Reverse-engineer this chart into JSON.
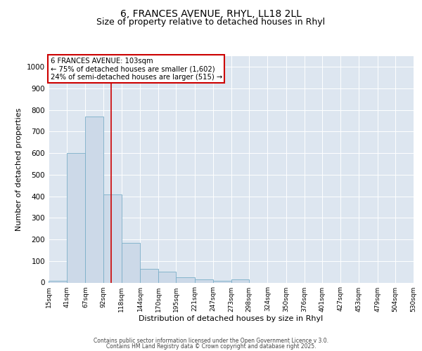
{
  "title1": "6, FRANCES AVENUE, RHYL, LL18 2LL",
  "title2": "Size of property relative to detached houses in Rhyl",
  "xlabel": "Distribution of detached houses by size in Rhyl",
  "ylabel": "Number of detached properties",
  "bar_color": "#ccd9e8",
  "bar_edge_color": "#7aaec8",
  "background_color": "#dde6f0",
  "ylim": [
    0,
    1050
  ],
  "yticks": [
    0,
    100,
    200,
    300,
    400,
    500,
    600,
    700,
    800,
    900,
    1000
  ],
  "bin_edges": [
    15,
    41,
    67,
    92,
    118,
    144,
    170,
    195,
    221,
    247,
    273,
    298,
    324,
    350,
    376,
    401,
    427,
    453,
    479,
    504,
    530
  ],
  "bin_labels": [
    "15sqm",
    "41sqm",
    "67sqm",
    "92sqm",
    "118sqm",
    "144sqm",
    "170sqm",
    "195sqm",
    "221sqm",
    "247sqm",
    "273sqm",
    "298sqm",
    "324sqm",
    "350sqm",
    "376sqm",
    "401sqm",
    "427sqm",
    "453sqm",
    "479sqm",
    "504sqm",
    "530sqm"
  ],
  "values": [
    8,
    600,
    770,
    410,
    185,
    65,
    50,
    25,
    15,
    8,
    14,
    0,
    0,
    0,
    0,
    0,
    0,
    0,
    0,
    0
  ],
  "property_line_x": 103,
  "annotation_title": "6 FRANCES AVENUE: 103sqm",
  "annotation_line1": "← 75% of detached houses are smaller (1,602)",
  "annotation_line2": "24% of semi-detached houses are larger (515) →",
  "annotation_color": "#cc0000",
  "footer1": "Contains HM Land Registry data © Crown copyright and database right 2025.",
  "footer2": "Contains public sector information licensed under the Open Government Licence v 3.0."
}
